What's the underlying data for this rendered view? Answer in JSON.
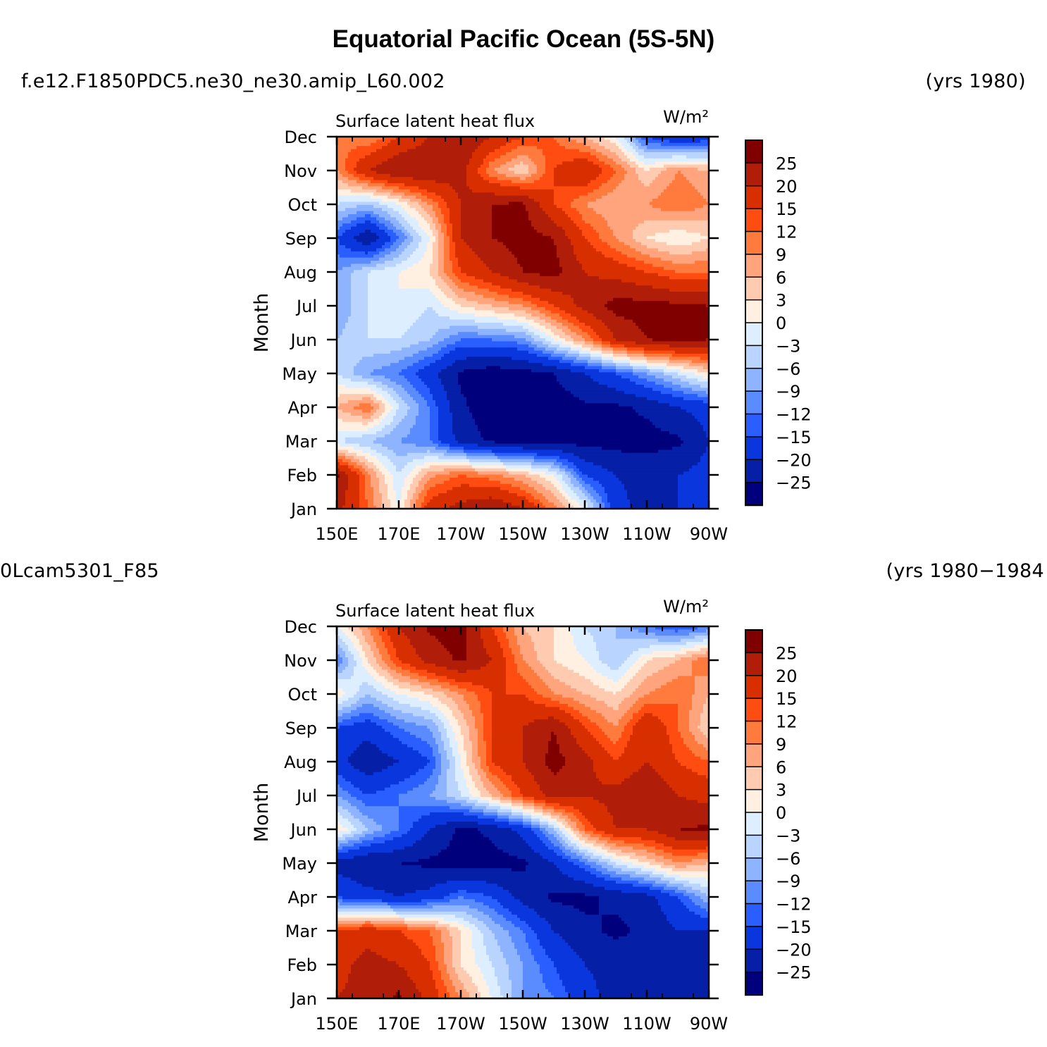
{
  "title": "Equatorial Pacific Ocean (5S-5N)",
  "chart_data": [
    {
      "type": "heatmap",
      "case_name": "f.e12.F1850PDC5.ne30_ne30.amip_L60.002",
      "years": "(yrs 1980)",
      "variable": "Surface latent heat flux",
      "units": "W/m²",
      "ylabel": "Month",
      "x_ticks": [
        "150E",
        "170E",
        "170W",
        "150W",
        "130W",
        "110W",
        "90W"
      ],
      "y_ticks": [
        "Jan",
        "Feb",
        "Mar",
        "Apr",
        "May",
        "Jun",
        "Jul",
        "Aug",
        "Sep",
        "Oct",
        "Nov",
        "Dec"
      ],
      "xlim": [
        150,
        270
      ],
      "grid_lon": [
        150,
        160,
        170,
        180,
        190,
        200,
        210,
        220,
        230,
        240,
        250,
        260,
        270
      ],
      "values": [
        [
          22,
          12,
          0,
          18,
          22,
          25,
          20,
          10,
          0,
          -18,
          -22,
          -20,
          -18
        ],
        [
          26,
          10,
          -3,
          8,
          12,
          10,
          6,
          0,
          -15,
          -20,
          -22,
          -20,
          -18
        ],
        [
          -3,
          -6,
          -9,
          -12,
          -22,
          -26,
          -27,
          -27,
          -27,
          -27,
          -27,
          -26,
          -20
        ],
        [
          6,
          12,
          -3,
          -12,
          -24,
          -28,
          -28,
          -28,
          -26,
          -26,
          -24,
          -20,
          -18
        ],
        [
          -3,
          -9,
          -12,
          -18,
          -26,
          -28,
          -27,
          -25,
          -20,
          -15,
          -9,
          -3,
          3
        ],
        [
          -6,
          -3,
          -3,
          -6,
          -12,
          -12,
          -10,
          0,
          9,
          20,
          25,
          26,
          25
        ],
        [
          -9,
          -3,
          0,
          -3,
          3,
          6,
          9,
          15,
          22,
          27,
          27,
          26,
          25
        ],
        [
          -9,
          -3,
          0,
          3,
          15,
          20,
          25,
          27,
          20,
          18,
          15,
          12,
          12
        ],
        [
          -15,
          -25,
          -12,
          0,
          20,
          25,
          27,
          25,
          15,
          9,
          3,
          0,
          3
        ],
        [
          -3,
          -6,
          0,
          9,
          20,
          25,
          26,
          15,
          9,
          6,
          9,
          12,
          9
        ],
        [
          9,
          20,
          25,
          25,
          22,
          9,
          3,
          15,
          20,
          12,
          3,
          9,
          6
        ],
        [
          12,
          9,
          15,
          20,
          25,
          20,
          15,
          12,
          6,
          0,
          -15,
          -20,
          -18
        ]
      ],
      "colorbar": {
        "levels": [
          "25",
          "20",
          "15",
          "12",
          "9",
          "6",
          "3",
          "0",
          "−3",
          "−6",
          "−9",
          "−12",
          "−15",
          "−20",
          "−25"
        ],
        "colors": [
          "#800000",
          "#b01e0a",
          "#d82f00",
          "#ff4d11",
          "#ff7a3d",
          "#ffa47c",
          "#ffcbb0",
          "#fff0e2",
          "#dceeff",
          "#b8d4ff",
          "#8eb4ff",
          "#5a8bff",
          "#2a5eff",
          "#0a36dd",
          "#051fa6",
          "#00007c"
        ]
      }
    },
    {
      "type": "heatmap",
      "case_name": "0Lcam5301_F85",
      "years": "(yrs 1980−1984",
      "variable": "Surface latent heat flux",
      "units": "W/m²",
      "ylabel": "Month",
      "x_ticks": [
        "150E",
        "170E",
        "170W",
        "150W",
        "130W",
        "110W",
        "90W"
      ],
      "y_ticks": [
        "Jan",
        "Feb",
        "Mar",
        "Apr",
        "May",
        "Jun",
        "Jul",
        "Aug",
        "Sep",
        "Oct",
        "Nov",
        "Dec"
      ],
      "xlim": [
        150,
        270
      ],
      "grid_lon": [
        150,
        160,
        170,
        180,
        190,
        200,
        210,
        220,
        230,
        240,
        250,
        260,
        270
      ],
      "values": [
        [
          20,
          22,
          26,
          18,
          9,
          0,
          -9,
          -12,
          -18,
          -22,
          -20,
          -22,
          -20
        ],
        [
          18,
          22,
          20,
          15,
          3,
          -3,
          -9,
          -15,
          -20,
          -22,
          -24,
          -24,
          -25
        ],
        [
          15,
          18,
          15,
          12,
          3,
          -6,
          -12,
          -20,
          -24,
          -26,
          -24,
          -20,
          -20
        ],
        [
          -15,
          -18,
          -20,
          -18,
          -12,
          -15,
          -22,
          -26,
          -26,
          -24,
          -22,
          -15,
          -6
        ],
        [
          -22,
          -25,
          -25,
          -26,
          -27,
          -27,
          -26,
          -20,
          -12,
          -3,
          3,
          9,
          6
        ],
        [
          3,
          -6,
          -12,
          -20,
          -26,
          -24,
          -18,
          -6,
          12,
          20,
          20,
          25,
          26
        ],
        [
          -9,
          -15,
          -12,
          -9,
          -3,
          6,
          15,
          22,
          20,
          22,
          25,
          20,
          18
        ],
        [
          -18,
          -24,
          -20,
          -15,
          0,
          15,
          20,
          27,
          22,
          15,
          20,
          15,
          12
        ],
        [
          -15,
          -18,
          -12,
          -9,
          3,
          15,
          20,
          25,
          15,
          9,
          20,
          12,
          3
        ],
        [
          3,
          -6,
          0,
          3,
          9,
          15,
          15,
          9,
          6,
          3,
          9,
          12,
          6
        ],
        [
          -12,
          3,
          15,
          22,
          26,
          20,
          9,
          3,
          0,
          -6,
          3,
          6,
          12
        ],
        [
          0,
          9,
          20,
          26,
          27,
          15,
          6,
          3,
          -3,
          -6,
          -12,
          -15,
          -12
        ]
      ],
      "colorbar": {
        "levels": [
          "25",
          "20",
          "15",
          "12",
          "9",
          "6",
          "3",
          "0",
          "−3",
          "−6",
          "−9",
          "−12",
          "−15",
          "−20",
          "−25"
        ],
        "colors": [
          "#800000",
          "#b01e0a",
          "#d82f00",
          "#ff4d11",
          "#ff7a3d",
          "#ffa47c",
          "#ffcbb0",
          "#fff0e2",
          "#dceeff",
          "#b8d4ff",
          "#8eb4ff",
          "#5a8bff",
          "#2a5eff",
          "#0a36dd",
          "#051fa6",
          "#00007c"
        ]
      }
    }
  ]
}
